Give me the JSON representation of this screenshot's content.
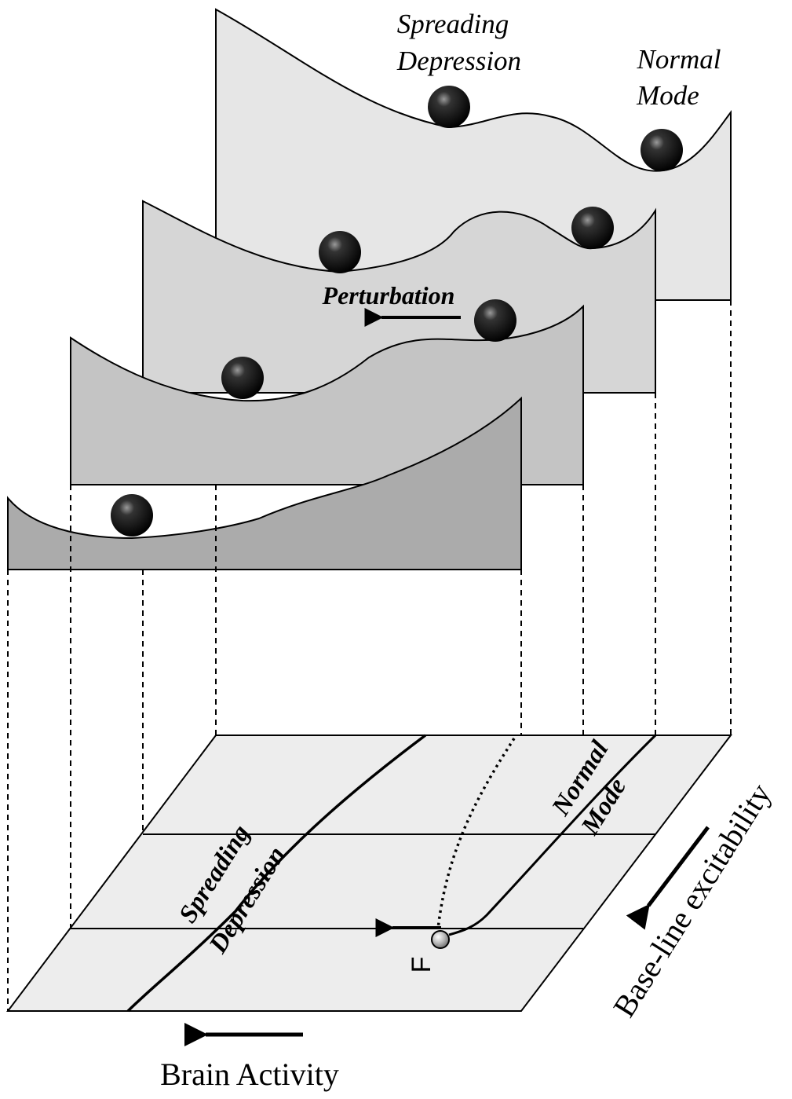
{
  "top_layer": {
    "spreading_depression_line1": "Spreading",
    "spreading_depression_line2": "Depression",
    "normal_mode_line1": "Normal",
    "normal_mode_line2": "Mode"
  },
  "perturbation_label": "Perturbation",
  "base_plane": {
    "spreading_depression_line1": "Spreading",
    "spreading_depression_line2": "Depression",
    "normal_mode_line1": "Normal",
    "normal_mode_line2": "Mode",
    "point_label": "F"
  },
  "axes": {
    "x_label": "Brain Activity",
    "y_label": "Base-line excitability"
  },
  "colors": {
    "layer1": "#e6e6e6",
    "layer2": "#d6d6d6",
    "layer3": "#c4c4c4",
    "layer4": "#ababab",
    "plane": "#ededed",
    "stroke": "#000000"
  }
}
